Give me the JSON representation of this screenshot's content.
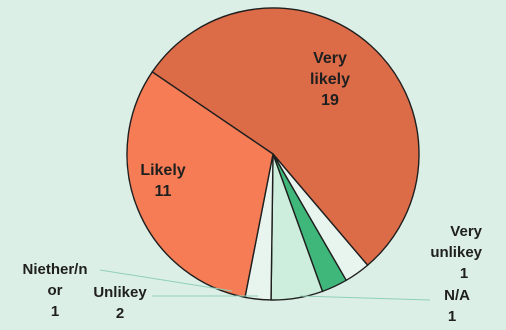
{
  "chart_data": {
    "type": "pie",
    "slices": [
      {
        "label": [
          "Very",
          "likely"
        ],
        "value": 19,
        "color": "#dc6b48"
      },
      {
        "label": [
          "Very",
          "unlikey"
        ],
        "value": 1,
        "color": "#e8f5ee"
      },
      {
        "label": [
          "N/A"
        ],
        "value": 1,
        "color": "#3fb77a"
      },
      {
        "label": [
          "Unlikey"
        ],
        "value": 2,
        "color": "#cdeedd"
      },
      {
        "label": [
          "Niether/n",
          "or"
        ],
        "value": 1,
        "color": "#e8f5ee"
      },
      {
        "label": [
          "Likely"
        ],
        "value": 11,
        "color": "#f57c55"
      }
    ]
  }
}
